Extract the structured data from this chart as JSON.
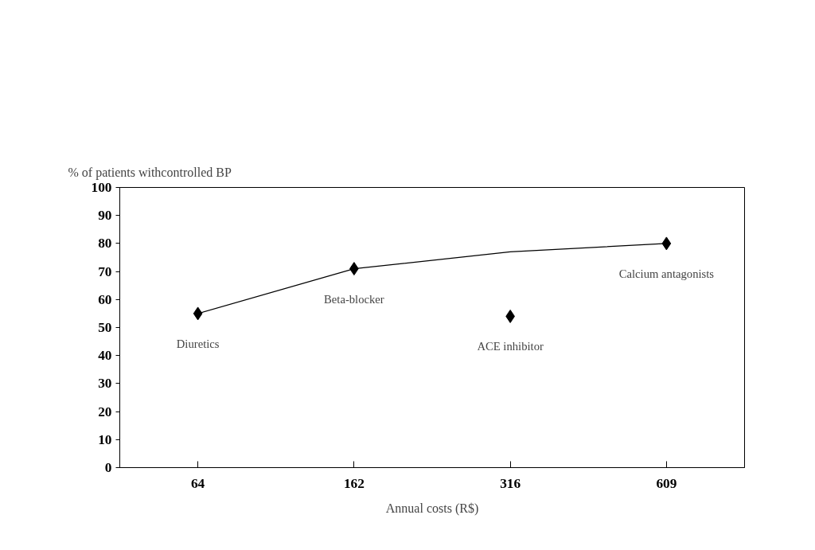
{
  "chart_data": {
    "type": "line",
    "ylabel": "% of patients withcontrolled BP",
    "xlabel": "Annual costs (R$)",
    "categories": [
      "64",
      "162",
      "316",
      "609"
    ],
    "series": [
      {
        "color": "#000000",
        "marker": "none",
        "values": [
          55,
          71,
          77,
          80
        ]
      },
      {
        "type": "scatter",
        "color": "#000000",
        "marker": "diamond",
        "values": [
          55,
          71,
          54,
          80
        ]
      }
    ],
    "annotations": [
      {
        "text": "Diuretics",
        "x": "64",
        "y": 55
      },
      {
        "text": "Beta-blocker",
        "x": "162",
        "y": 71
      },
      {
        "text": "ACE inhibitor",
        "x": "316",
        "y": 54
      },
      {
        "text": "Calcium antagonists",
        "x": "609",
        "y": 80
      }
    ],
    "ylim": [
      0,
      100
    ],
    "yticks": [
      0,
      10,
      20,
      30,
      40,
      50,
      60,
      70,
      80,
      90,
      100
    ],
    "grid": false
  }
}
